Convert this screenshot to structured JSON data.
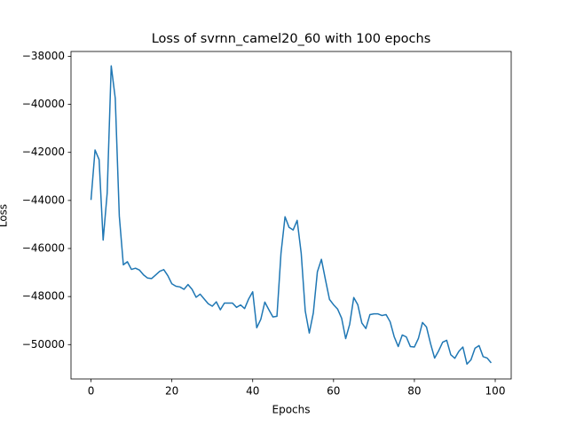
{
  "chart_data": {
    "type": "line",
    "title": "Loss of svrnn_camel20_60 with 100 epochs",
    "x_label": "Epochs",
    "y_label": "Loss",
    "x": [
      0,
      1,
      2,
      3,
      4,
      5,
      6,
      7,
      8,
      9,
      10,
      11,
      12,
      13,
      14,
      15,
      16,
      17,
      18,
      19,
      20,
      21,
      22,
      23,
      24,
      25,
      26,
      27,
      28,
      29,
      30,
      31,
      32,
      33,
      34,
      35,
      36,
      37,
      38,
      39,
      40,
      41,
      42,
      43,
      44,
      45,
      46,
      47,
      48,
      49,
      50,
      51,
      52,
      53,
      54,
      55,
      56,
      57,
      58,
      59,
      60,
      61,
      62,
      63,
      64,
      65,
      66,
      67,
      68,
      69,
      70,
      71,
      72,
      73,
      74,
      75,
      76,
      77,
      78,
      79,
      80,
      81,
      82,
      83,
      84,
      85,
      86,
      87,
      88,
      89,
      90,
      91,
      92,
      93,
      94,
      95,
      96,
      97,
      98,
      99
    ],
    "series": [
      {
        "color": "#1f77b4",
        "values": [
          -43980,
          -41900,
          -42300,
          -45650,
          -43700,
          -38400,
          -39750,
          -44650,
          -46680,
          -46550,
          -46870,
          -46820,
          -46900,
          -47100,
          -47230,
          -47250,
          -47100,
          -46950,
          -46880,
          -47130,
          -47470,
          -47570,
          -47600,
          -47700,
          -47500,
          -47700,
          -48030,
          -47900,
          -48100,
          -48300,
          -48400,
          -48220,
          -48550,
          -48270,
          -48270,
          -48270,
          -48450,
          -48350,
          -48500,
          -48100,
          -47800,
          -49300,
          -48950,
          -48230,
          -48550,
          -48850,
          -48820,
          -46200,
          -44680,
          -45120,
          -45230,
          -44830,
          -46200,
          -48600,
          -49520,
          -48680,
          -46970,
          -46450,
          -47300,
          -48120,
          -48340,
          -48520,
          -48900,
          -49750,
          -49150,
          -48040,
          -48340,
          -49100,
          -49330,
          -48750,
          -48720,
          -48720,
          -48790,
          -48750,
          -49050,
          -49670,
          -50080,
          -49600,
          -49680,
          -50080,
          -50100,
          -49740,
          -49080,
          -49270,
          -49960,
          -50560,
          -50260,
          -49900,
          -49820,
          -50420,
          -50570,
          -50280,
          -50100,
          -50810,
          -50630,
          -50150,
          -50040,
          -50500,
          -50560,
          -50760
        ]
      }
    ],
    "xlim": [
      -4.95,
      103.95
    ],
    "xticks": [
      0,
      20,
      40,
      60,
      80,
      100
    ],
    "ylim": [
      -51430,
      -37800
    ],
    "yticks": [
      {
        "value": -50000,
        "label": "−50000"
      },
      {
        "value": -48000,
        "label": "−48000"
      },
      {
        "value": -46000,
        "label": "−46000"
      },
      {
        "value": -44000,
        "label": "−44000"
      },
      {
        "value": -42000,
        "label": "−42000"
      },
      {
        "value": -40000,
        "label": "−40000"
      },
      {
        "value": -38000,
        "label": "−38000"
      }
    ],
    "grid": false
  }
}
